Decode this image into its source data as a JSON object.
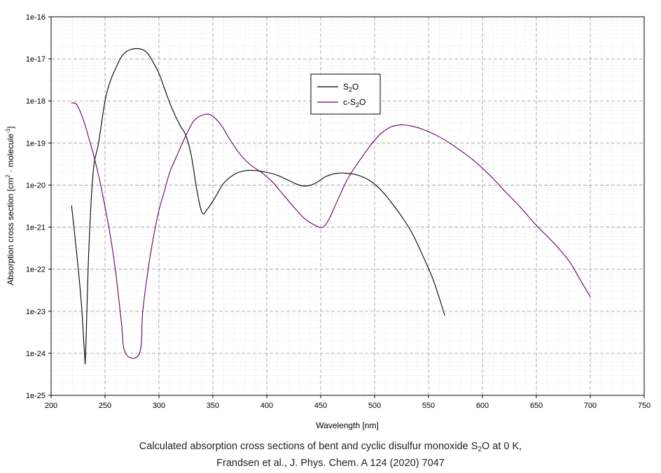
{
  "chart_data": {
    "type": "line",
    "xlabel": "Wavelength [nm]",
    "ylabel": {
      "text": "Absorption cross section [cm",
      "sup1": "2",
      "mid": " · molecule",
      "sup2": "-1",
      "end": "]"
    },
    "xlim": [
      200,
      750
    ],
    "ylim": [
      1e-25,
      1e-16
    ],
    "yscale": "log",
    "grid": true,
    "legend_position": "top-center",
    "x_ticks": [
      "200",
      "250",
      "300",
      "350",
      "400",
      "450",
      "500",
      "550",
      "600",
      "650",
      "700",
      "750"
    ],
    "y_ticks": [
      "1e-25",
      "1e-24",
      "1e-23",
      "1e-22",
      "1e-21",
      "1e-20",
      "1e-19",
      "1e-18",
      "1e-17",
      "1e-16"
    ],
    "series": [
      {
        "name": "S2O",
        "legend": {
          "base": "S",
          "sub": "2",
          "rest": "O"
        },
        "color": "#000000",
        "points": [
          [
            219,
            3.2e-21
          ],
          [
            224,
            2e-22
          ],
          [
            228,
            1.6e-23
          ],
          [
            231,
            1e-24
          ],
          [
            232,
            1e-24
          ],
          [
            235,
            3e-22
          ],
          [
            239,
            2e-20
          ],
          [
            244,
            1e-19
          ],
          [
            250,
            1e-18
          ],
          [
            255,
            3e-18
          ],
          [
            260,
            6e-18
          ],
          [
            265,
            1.1e-17
          ],
          [
            270,
            1.5e-17
          ],
          [
            275,
            1.7e-17
          ],
          [
            280,
            1.75e-17
          ],
          [
            285,
            1.65e-17
          ],
          [
            290,
            1.3e-17
          ],
          [
            295,
            8e-18
          ],
          [
            300,
            4.5e-18
          ],
          [
            305,
            2e-18
          ],
          [
            310,
            9e-19
          ],
          [
            315,
            4.5e-19
          ],
          [
            320,
            2.5e-19
          ],
          [
            325,
            1.5e-19
          ],
          [
            330,
            5e-20
          ],
          [
            335,
            8e-21
          ],
          [
            340,
            2.2e-21
          ],
          [
            345,
            2.7e-21
          ],
          [
            352,
            5e-21
          ],
          [
            360,
            1.1e-20
          ],
          [
            370,
            1.8e-20
          ],
          [
            380,
            2.2e-20
          ],
          [
            390,
            2.2e-20
          ],
          [
            400,
            2e-20
          ],
          [
            410,
            1.7e-20
          ],
          [
            420,
            1.3e-20
          ],
          [
            430,
            1e-20
          ],
          [
            437,
            9.5e-21
          ],
          [
            445,
            1.1e-20
          ],
          [
            455,
            1.6e-20
          ],
          [
            465,
            1.9e-20
          ],
          [
            475,
            1.9e-20
          ],
          [
            485,
            1.7e-20
          ],
          [
            495,
            1.3e-20
          ],
          [
            505,
            8e-21
          ],
          [
            515,
            4e-21
          ],
          [
            525,
            1.8e-21
          ],
          [
            535,
            7e-22
          ],
          [
            545,
            2e-22
          ],
          [
            555,
            5e-23
          ],
          [
            565,
            8e-24
          ]
        ]
      },
      {
        "name": "c-S2O",
        "legend": {
          "base": "c-S",
          "sub": "2",
          "rest": "O"
        },
        "color": "#660066",
        "points": [
          [
            219,
            9e-19
          ],
          [
            224,
            8e-19
          ],
          [
            230,
            3.5e-19
          ],
          [
            235,
            1.3e-19
          ],
          [
            240,
            4.5e-20
          ],
          [
            245,
            1.3e-20
          ],
          [
            250,
            3e-21
          ],
          [
            255,
            6e-22
          ],
          [
            260,
            8e-23
          ],
          [
            265,
            6e-24
          ],
          [
            269,
            1e-24
          ],
          [
            282,
            1e-24
          ],
          [
            285,
            1e-23
          ],
          [
            290,
            1e-22
          ],
          [
            295,
            6e-22
          ],
          [
            300,
            2.5e-21
          ],
          [
            305,
            7e-21
          ],
          [
            310,
            2e-20
          ],
          [
            318,
            6e-20
          ],
          [
            325,
            1.5e-19
          ],
          [
            333,
            3.5e-19
          ],
          [
            343,
            4.8e-19
          ],
          [
            350,
            4.3e-19
          ],
          [
            358,
            2.6e-19
          ],
          [
            365,
            1.3e-19
          ],
          [
            375,
            5.5e-20
          ],
          [
            385,
            3e-20
          ],
          [
            395,
            2e-20
          ],
          [
            405,
            1.2e-20
          ],
          [
            415,
            6e-21
          ],
          [
            425,
            3e-21
          ],
          [
            435,
            1.6e-21
          ],
          [
            445,
            1.1e-21
          ],
          [
            452,
            1e-21
          ],
          [
            458,
            1.6e-21
          ],
          [
            465,
            4e-21
          ],
          [
            475,
            1.4e-20
          ],
          [
            485,
            3.5e-20
          ],
          [
            495,
            8e-20
          ],
          [
            505,
            1.6e-19
          ],
          [
            515,
            2.4e-19
          ],
          [
            525,
            2.7e-19
          ],
          [
            535,
            2.5e-19
          ],
          [
            545,
            2.1e-19
          ],
          [
            560,
            1.4e-19
          ],
          [
            575,
            8e-20
          ],
          [
            590,
            4.2e-20
          ],
          [
            605,
            1.9e-20
          ],
          [
            620,
            7.5e-21
          ],
          [
            635,
            3e-21
          ],
          [
            650,
            1.1e-21
          ],
          [
            665,
            4.5e-22
          ],
          [
            680,
            1.6e-22
          ],
          [
            690,
            6e-23
          ],
          [
            700,
            2.2e-23
          ]
        ]
      }
    ]
  },
  "caption": {
    "line1_before": "Calculated absorption cross sections of bent and cyclic disulfur monoxide S",
    "line1_sub": "2",
    "line1_after": "O at 0 K,",
    "line2": "Frandsen et al., J. Phys. Chem. A 124 (2020) 7047"
  }
}
